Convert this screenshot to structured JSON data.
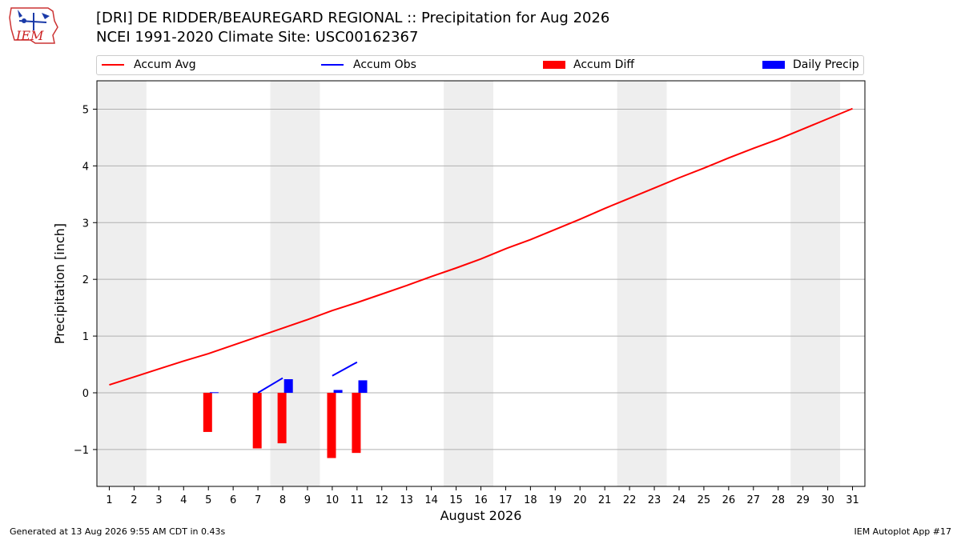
{
  "header": {
    "title_line1": "[DRI] DE RIDDER/BEAUREGARD REGIONAL :: Precipitation for Aug 2026",
    "title_line2": "NCEI 1991-2020 Climate Site: USC00162367"
  },
  "logo": {
    "text": "IEM"
  },
  "footer": {
    "left": "Generated at 13 Aug 2026 9:55 AM CDT in 0.43s",
    "right": "IEM Autoplot App #17"
  },
  "chart_data": {
    "type": "bar",
    "xlabel": "August 2026",
    "ylabel": "Precipitation [inch]",
    "xlim": [
      0.5,
      31.5
    ],
    "ylim": [
      -1.65,
      5.5
    ],
    "x_ticks": [
      1,
      2,
      3,
      4,
      5,
      6,
      7,
      8,
      9,
      10,
      11,
      12,
      13,
      14,
      15,
      16,
      17,
      18,
      19,
      20,
      21,
      22,
      23,
      24,
      25,
      26,
      27,
      28,
      29,
      30,
      31
    ],
    "y_ticks": [
      -1,
      0,
      1,
      2,
      3,
      4,
      5
    ],
    "y_tick_labels": [
      "−1",
      "0",
      "1",
      "2",
      "3",
      "4",
      "5"
    ],
    "grid": "horizontal",
    "weekend_shading": [
      [
        1,
        2
      ],
      [
        8,
        9
      ],
      [
        15,
        16
      ],
      [
        22,
        23
      ],
      [
        29,
        30
      ]
    ],
    "legend": {
      "placement": "top",
      "entries": [
        {
          "label": "Accum Avg",
          "color": "#ff0000",
          "kind": "line"
        },
        {
          "label": "Accum Obs",
          "color": "#0000ff",
          "kind": "line"
        },
        {
          "label": "Accum Diff",
          "color": "#ff0000",
          "kind": "bar"
        },
        {
          "label": "Daily Precip",
          "color": "#0000ff",
          "kind": "bar"
        }
      ]
    },
    "series": [
      {
        "name": "Accum Avg",
        "type": "line",
        "color": "#ff0000",
        "x": [
          1,
          2,
          3,
          4,
          5,
          6,
          7,
          8,
          9,
          10,
          11,
          12,
          13,
          14,
          15,
          16,
          17,
          18,
          19,
          20,
          21,
          22,
          23,
          24,
          25,
          26,
          27,
          28,
          29,
          30,
          31
        ],
        "values": [
          0.14,
          0.28,
          0.42,
          0.56,
          0.69,
          0.84,
          0.99,
          1.14,
          1.29,
          1.45,
          1.59,
          1.74,
          1.89,
          2.05,
          2.2,
          2.36,
          2.54,
          2.7,
          2.88,
          3.06,
          3.25,
          3.43,
          3.61,
          3.79,
          3.96,
          4.14,
          4.31,
          4.47,
          4.65,
          4.83,
          5.01
        ]
      },
      {
        "name": "Accum Obs",
        "type": "line",
        "color": "#0000ff",
        "segments": [
          {
            "x": [
              7,
              8
            ],
            "values": [
              0.0,
              0.26
            ]
          },
          {
            "x": [
              10,
              11
            ],
            "values": [
              0.3,
              0.54
            ]
          }
        ]
      },
      {
        "name": "Accum Diff",
        "type": "bar",
        "color": "#ff0000",
        "x": [
          5,
          7,
          8,
          10,
          11
        ],
        "values": [
          -0.69,
          -0.98,
          -0.89,
          -1.15,
          -1.06
        ]
      },
      {
        "name": "Daily Precip",
        "type": "bar",
        "color": "#0000ff",
        "x": [
          5,
          8,
          10,
          11
        ],
        "values": [
          0.01,
          0.24,
          0.05,
          0.22
        ]
      }
    ]
  }
}
